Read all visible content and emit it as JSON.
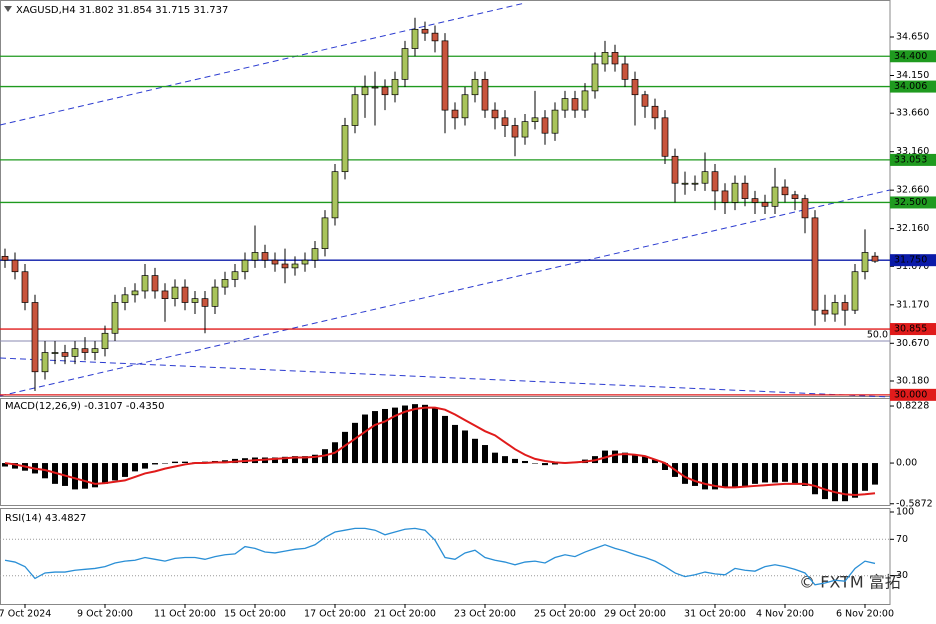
{
  "chart_data": {
    "type": "candlestick",
    "title": "XAGUSD,H4  31.802 31.854 31.715 31.737",
    "categories": [
      null,
      null,
      "7 Oct 2024",
      null,
      null,
      null,
      null,
      null,
      null,
      null,
      "9 Oct 20:00",
      null,
      null,
      null,
      null,
      null,
      null,
      null,
      "11 Oct 20:00",
      null,
      null,
      null,
      null,
      null,
      null,
      "15 Oct 20:00",
      null,
      null,
      null,
      null,
      null,
      null,
      null,
      "17 Oct 20:00",
      null,
      null,
      null,
      null,
      null,
      null,
      "21 Oct 20:00",
      null,
      null,
      null,
      null,
      null,
      null,
      null,
      "23 Oct 20:00",
      null,
      null,
      null,
      null,
      null,
      null,
      null,
      "25 Oct 20:00",
      null,
      null,
      null,
      null,
      null,
      null,
      "29 Oct 20:00",
      null,
      null,
      null,
      null,
      null,
      null,
      null,
      "31 Oct 20:00",
      null,
      null,
      null,
      null,
      null,
      null,
      "4 Nov 20:00",
      null,
      null,
      null,
      null,
      null,
      null,
      null,
      "6 Nov 20:00",
      null
    ],
    "open": [
      31.8,
      31.75,
      31.6,
      31.2,
      30.3,
      30.55,
      30.55,
      30.5,
      30.6,
      30.55,
      30.6,
      30.8,
      31.2,
      31.3,
      31.35,
      31.55,
      31.35,
      31.25,
      31.4,
      31.2,
      31.25,
      31.15,
      31.4,
      31.5,
      31.6,
      31.75,
      31.85,
      31.75,
      31.7,
      31.65,
      31.7,
      31.75,
      31.9,
      32.3,
      32.9,
      33.5,
      33.9,
      34.0,
      34.0,
      33.9,
      34.1,
      34.5,
      34.75,
      34.7,
      34.6,
      33.7,
      33.6,
      33.9,
      34.1,
      33.7,
      33.6,
      33.5,
      33.35,
      33.55,
      33.6,
      33.4,
      33.7,
      33.85,
      33.7,
      33.95,
      34.3,
      34.45,
      34.3,
      34.1,
      33.9,
      33.75,
      33.6,
      33.1,
      32.75,
      32.75,
      32.75,
      32.9,
      32.65,
      32.5,
      32.75,
      32.55,
      32.5,
      32.45,
      32.7,
      32.6,
      32.55,
      32.3,
      31.1,
      31.05,
      31.2,
      31.1,
      31.6,
      31.802
    ],
    "high": [
      31.9,
      31.85,
      31.7,
      31.3,
      30.7,
      30.7,
      30.65,
      30.7,
      30.75,
      30.7,
      30.9,
      31.3,
      31.4,
      31.45,
      31.7,
      31.65,
      31.45,
      31.5,
      31.5,
      31.35,
      31.35,
      31.5,
      31.6,
      31.7,
      31.85,
      32.2,
      31.95,
      31.85,
      31.9,
      31.8,
      31.85,
      32.0,
      32.4,
      33.0,
      33.6,
      34.0,
      34.15,
      34.2,
      34.1,
      34.2,
      34.6,
      34.9,
      34.85,
      34.8,
      34.7,
      33.8,
      34.0,
      34.2,
      34.2,
      33.8,
      33.7,
      33.6,
      33.65,
      33.95,
      33.7,
      33.8,
      33.95,
      33.95,
      34.05,
      34.45,
      34.6,
      34.55,
      34.4,
      34.2,
      33.95,
      33.85,
      33.7,
      33.2,
      32.9,
      32.85,
      33.15,
      33.0,
      32.75,
      32.85,
      32.85,
      32.65,
      32.6,
      32.95,
      32.8,
      32.65,
      32.6,
      32.4,
      31.3,
      31.3,
      31.3,
      31.7,
      32.15,
      31.854
    ],
    "low": [
      31.65,
      31.5,
      31.1,
      30.05,
      30.2,
      30.4,
      30.4,
      30.4,
      30.45,
      30.45,
      30.5,
      30.7,
      31.1,
      31.2,
      31.25,
      31.25,
      30.95,
      31.15,
      31.1,
      31.05,
      30.8,
      31.05,
      31.3,
      31.4,
      31.5,
      31.65,
      31.65,
      31.6,
      31.45,
      31.55,
      31.6,
      31.65,
      31.8,
      32.2,
      32.8,
      33.4,
      33.6,
      33.5,
      33.7,
      33.8,
      34.0,
      34.4,
      34.6,
      34.45,
      33.4,
      33.45,
      33.5,
      33.8,
      33.6,
      33.45,
      33.35,
      33.1,
      33.25,
      33.45,
      33.25,
      33.3,
      33.6,
      33.6,
      33.6,
      33.85,
      34.2,
      34.2,
      34.0,
      33.5,
      33.6,
      33.45,
      33.0,
      32.5,
      32.6,
      32.65,
      32.65,
      32.4,
      32.35,
      32.4,
      32.45,
      32.35,
      32.35,
      32.35,
      32.5,
      32.4,
      32.1,
      30.9,
      30.95,
      30.95,
      30.9,
      31.05,
      31.5,
      31.715
    ],
    "close": [
      31.75,
      31.6,
      31.2,
      30.3,
      30.55,
      30.55,
      30.5,
      30.6,
      30.55,
      30.6,
      30.8,
      31.2,
      31.3,
      31.35,
      31.55,
      31.35,
      31.25,
      31.4,
      31.2,
      31.25,
      31.15,
      31.4,
      31.5,
      31.6,
      31.75,
      31.85,
      31.75,
      31.7,
      31.65,
      31.7,
      31.75,
      31.9,
      32.3,
      32.9,
      33.5,
      33.9,
      34.0,
      34.0,
      33.9,
      34.1,
      34.5,
      34.75,
      34.7,
      34.6,
      33.7,
      33.6,
      33.9,
      34.1,
      33.7,
      33.6,
      33.5,
      33.35,
      33.55,
      33.6,
      33.4,
      33.7,
      33.85,
      33.7,
      33.95,
      34.3,
      34.45,
      34.3,
      34.1,
      33.9,
      33.75,
      33.6,
      33.1,
      32.75,
      32.75,
      32.75,
      32.9,
      32.65,
      32.5,
      32.75,
      32.55,
      32.5,
      32.45,
      32.7,
      32.6,
      32.55,
      32.3,
      31.1,
      31.05,
      31.2,
      31.1,
      31.6,
      31.85,
      31.737
    ],
    "up_color": "#a9c45c",
    "down_color": "#c8553d",
    "ylim": [
      29.985,
      35.066
    ],
    "yticks": [
      {
        "value": 34.65,
        "label": "34.650"
      },
      {
        "value": 34.15,
        "label": "34.150"
      },
      {
        "value": 33.66,
        "label": "33.660"
      },
      {
        "value": 33.16,
        "label": "33.160"
      },
      {
        "value": 32.66,
        "label": "32.660"
      },
      {
        "value": 32.16,
        "label": "32.160"
      },
      {
        "value": 31.67,
        "label": "31.670"
      },
      {
        "value": 31.17,
        "label": "31.170"
      },
      {
        "value": 30.67,
        "label": "30.670"
      },
      {
        "value": 30.18,
        "label": "30.180"
      }
    ],
    "levels": [
      {
        "value": 34.4,
        "label": "34.400",
        "color": "#1f9a1f"
      },
      {
        "value": 34.006,
        "label": "34.006",
        "color": "#1f9a1f"
      },
      {
        "value": 33.053,
        "label": "33.053",
        "color": "#1f9a1f"
      },
      {
        "value": 32.5,
        "label": "32.500",
        "color": "#1f9a1f"
      },
      {
        "value": 31.75,
        "label": "31.750",
        "color": "#0a1aa8"
      },
      {
        "value": 30.855,
        "label": "30.855",
        "color": "#e01b1b"
      },
      {
        "value": 30.0,
        "label": "30.000",
        "color": "#e01b1b"
      }
    ],
    "fib": {
      "value": 30.7,
      "label": "50.0",
      "color": "#8a8ab0"
    },
    "macd": {
      "title": "MACD(12,26,9) -0.3107 -0.4350",
      "histogram": [
        -0.05,
        -0.08,
        -0.11,
        -0.15,
        -0.22,
        -0.3,
        -0.33,
        -0.38,
        -0.37,
        -0.35,
        -0.3,
        -0.25,
        -0.2,
        -0.12,
        -0.08,
        -0.02,
        0.0,
        0.02,
        0.02,
        0.01,
        0.02,
        0.03,
        0.04,
        0.06,
        0.07,
        0.08,
        0.08,
        0.08,
        0.09,
        0.1,
        0.1,
        0.12,
        0.2,
        0.3,
        0.45,
        0.58,
        0.7,
        0.75,
        0.78,
        0.8,
        0.83,
        0.85,
        0.84,
        0.8,
        0.68,
        0.55,
        0.47,
        0.35,
        0.26,
        0.15,
        0.1,
        0.06,
        0.03,
        0.0,
        -0.03,
        -0.02,
        0.0,
        0.02,
        0.05,
        0.1,
        0.18,
        0.18,
        0.15,
        0.12,
        0.1,
        0.05,
        -0.1,
        -0.2,
        -0.3,
        -0.33,
        -0.38,
        -0.38,
        -0.35,
        -0.35,
        -0.33,
        -0.3,
        -0.28,
        -0.28,
        -0.27,
        -0.3,
        -0.33,
        -0.45,
        -0.52,
        -0.55,
        -0.55,
        -0.5,
        -0.4,
        -0.3107
      ],
      "signal": [
        0.0,
        -0.02,
        -0.05,
        -0.08,
        -0.1,
        -0.14,
        -0.18,
        -0.22,
        -0.26,
        -0.3,
        -0.29,
        -0.27,
        -0.25,
        -0.2,
        -0.15,
        -0.12,
        -0.08,
        -0.05,
        -0.02,
        0.0,
        0.0,
        0.01,
        0.01,
        0.02,
        0.03,
        0.04,
        0.05,
        0.06,
        0.07,
        0.08,
        0.08,
        0.09,
        0.11,
        0.15,
        0.25,
        0.35,
        0.45,
        0.55,
        0.6,
        0.68,
        0.74,
        0.78,
        0.8,
        0.8,
        0.77,
        0.7,
        0.62,
        0.54,
        0.46,
        0.4,
        0.3,
        0.2,
        0.12,
        0.06,
        0.03,
        0.01,
        0.0,
        0.01,
        0.02,
        0.04,
        0.08,
        0.12,
        0.13,
        0.12,
        0.1,
        0.05,
        0.0,
        -0.1,
        -0.2,
        -0.26,
        -0.3,
        -0.33,
        -0.35,
        -0.35,
        -0.34,
        -0.33,
        -0.32,
        -0.31,
        -0.3,
        -0.3,
        -0.3,
        -0.33,
        -0.38,
        -0.42,
        -0.45,
        -0.46,
        -0.45,
        -0.435
      ],
      "histogram_color": "#000000",
      "signal_color": "#e01b1b",
      "ylim": [
        -0.605,
        0.924
      ],
      "yticks": [
        0.8228,
        {
          "value": 0,
          "label": "0.00"
        },
        -0.5872
      ]
    },
    "rsi": {
      "title": "RSI(14) 43.4827",
      "values": [
        47,
        45,
        40,
        27,
        33,
        34,
        34,
        36,
        37,
        38,
        40,
        44,
        46,
        47,
        50,
        48,
        46,
        49,
        50,
        50,
        48,
        51,
        53,
        54,
        62,
        60,
        56,
        55,
        57,
        59,
        60,
        64,
        72,
        78,
        80,
        82,
        82,
        80,
        75,
        78,
        81,
        82,
        80,
        69,
        50,
        48,
        55,
        58,
        50,
        47,
        45,
        42,
        45,
        46,
        44,
        50,
        53,
        51,
        56,
        60,
        64,
        60,
        57,
        53,
        50,
        46,
        40,
        33,
        29,
        31,
        34,
        32,
        31,
        38,
        36,
        35,
        40,
        42,
        40,
        37,
        33,
        20,
        22,
        25,
        24,
        38,
        46,
        43.4827
      ],
      "color": "#2a8fd6",
      "ylim": [
        0,
        100
      ],
      "yticks": [
        100,
        70,
        30
      ],
      "levels": [
        70,
        30
      ]
    },
    "watermark": "© FXTM 富拓"
  }
}
